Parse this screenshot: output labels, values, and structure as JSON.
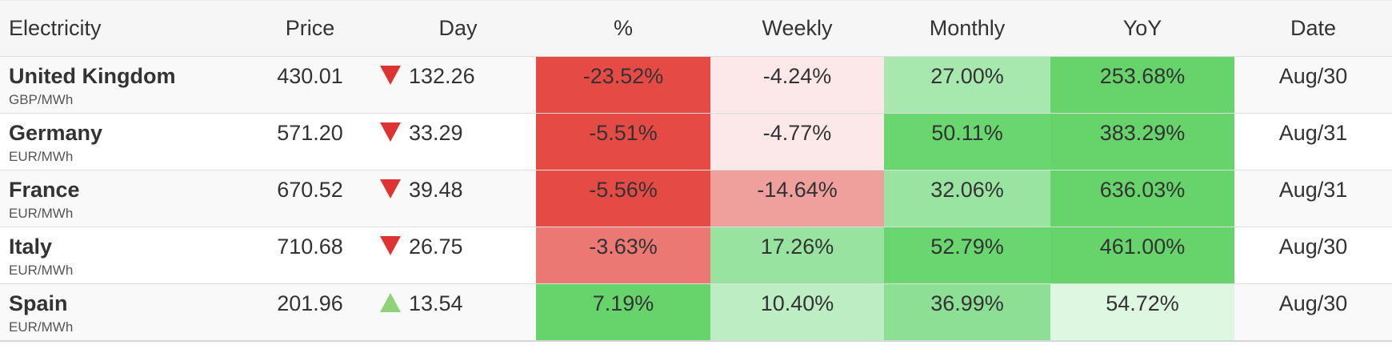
{
  "table": {
    "headers": [
      "Electricity",
      "Price",
      "Day",
      "%",
      "Weekly",
      "Monthly",
      "YoY",
      "Date"
    ],
    "rows": [
      {
        "name": "United Kingdom",
        "unit": "GBP/MWh",
        "price": "430.01",
        "day_direction": "down",
        "day": "132.26",
        "percent": "-23.52%",
        "weekly": "-4.24%",
        "monthly": "27.00%",
        "yoy": "253.68%",
        "date": "Aug/30"
      },
      {
        "name": "Germany",
        "unit": "EUR/MWh",
        "price": "571.20",
        "day_direction": "down",
        "day": "33.29",
        "percent": "-5.51%",
        "weekly": "-4.77%",
        "monthly": "50.11%",
        "yoy": "383.29%",
        "date": "Aug/31"
      },
      {
        "name": "France",
        "unit": "EUR/MWh",
        "price": "670.52",
        "day_direction": "down",
        "day": "39.48",
        "percent": "-5.56%",
        "weekly": "-14.64%",
        "monthly": "32.06%",
        "yoy": "636.03%",
        "date": "Aug/31"
      },
      {
        "name": "Italy",
        "unit": "EUR/MWh",
        "price": "710.68",
        "day_direction": "down",
        "day": "26.75",
        "percent": "-3.63%",
        "weekly": "17.26%",
        "monthly": "52.79%",
        "yoy": "461.00%",
        "date": "Aug/30"
      },
      {
        "name": "Spain",
        "unit": "EUR/MWh",
        "price": "201.96",
        "day_direction": "up",
        "day": "13.54",
        "percent": "7.19%",
        "weekly": "10.40%",
        "monthly": "36.99%",
        "yoy": "54.72%",
        "date": "Aug/30"
      }
    ],
    "heat_colors": {
      "percent": [
        "#e64a45",
        "#e64a45",
        "#e64a45",
        "#ec7873",
        "#66d36b"
      ],
      "weekly": [
        "#fce8e8",
        "#fce8e8",
        "#efa09d",
        "#98e3a0",
        "#bdedc3"
      ],
      "monthly": [
        "#a7e8af",
        "#6ad66f",
        "#9ae4a2",
        "#6ad66f",
        "#8ddf96"
      ],
      "yoy": [
        "#66d36b",
        "#66d36b",
        "#66d36b",
        "#66d36b",
        "#def7e1"
      ]
    },
    "arrow_colors": {
      "down": "#dd3333",
      "up": "#8fd27a"
    }
  }
}
